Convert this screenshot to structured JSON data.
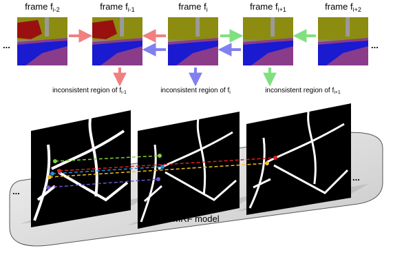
{
  "frames": [
    {
      "label": "frame f",
      "subscript": "i-2"
    },
    {
      "label": "frame f",
      "subscript": "i-1"
    },
    {
      "label": "frame f",
      "subscript": "i"
    },
    {
      "label": "frame f",
      "subscript": "i+1"
    },
    {
      "label": "frame f",
      "subscript": "i+2"
    }
  ],
  "regions": [
    {
      "label": "inconsistent region of f",
      "subscript": "i-1"
    },
    {
      "label": "inconsistent region of f",
      "subscript": "i"
    },
    {
      "label": "inconsistent region of f",
      "subscript": "i+1"
    }
  ],
  "model_label": "MRF model",
  "ellipsis": [
    "...",
    "...",
    "...",
    "..."
  ]
}
